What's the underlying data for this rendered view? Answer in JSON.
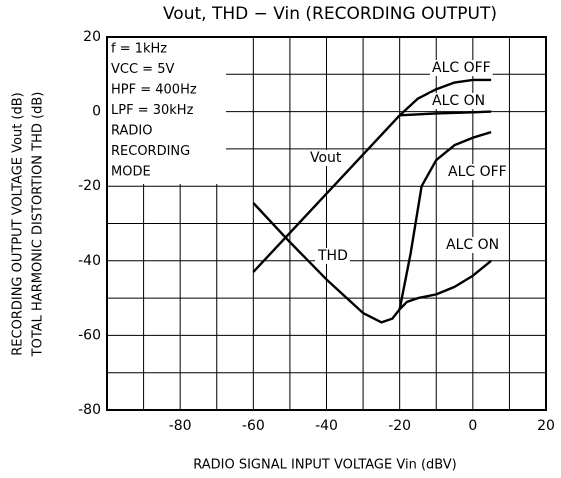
{
  "chart_data": {
    "type": "line",
    "title": "Vout, THD − Vin (RECORDING OUTPUT)",
    "x_label": "RADIO SIGNAL INPUT VOLTAGE   Vin   (dBV)",
    "y_label": [
      "RECORDING OUTPUT VOLTAGE   Vout   (dB)",
      "TOTAL HARMONIC DISTORTION   THD   (dB)"
    ],
    "conditions": [
      "f = 1kHz",
      "VCC = 5V",
      "HPF = 400Hz",
      "LPF = 30kHz",
      "RADIO",
      "RECORDING",
      "MODE"
    ],
    "annotations": [
      "ALC OFF",
      "ALC ON",
      "Vout",
      "ALC OFF",
      "THD",
      "ALC ON"
    ],
    "xlim": [
      -100,
      20
    ],
    "ylim": [
      -80,
      20
    ],
    "xticks": [
      -80,
      -60,
      -40,
      -20,
      0,
      20
    ],
    "yticks": [
      20,
      0,
      -20,
      -40,
      -60,
      -80
    ],
    "xgrid": [
      -90,
      -80,
      -70,
      -60,
      -50,
      -40,
      -30,
      -20,
      -10,
      0,
      10
    ],
    "ygrid": [
      10,
      0,
      -10,
      -20,
      -30,
      -40,
      -50,
      -60,
      -70
    ],
    "grid": true,
    "series": [
      {
        "color": "#000000",
        "x": [
          -60,
          -20,
          -15,
          -10,
          -5,
          0,
          5
        ],
        "values": [
          -43,
          -1,
          3.5,
          6,
          7.8,
          8.5,
          8.5
        ]
      },
      {
        "color": "#000000",
        "x": [
          -20,
          -10,
          0,
          5
        ],
        "values": [
          -1,
          -0.5,
          -0.2,
          0
        ]
      },
      {
        "color": "#000000",
        "x": [
          -60,
          -50,
          -40,
          -30,
          -25,
          -22,
          -20,
          -17,
          -14,
          -10,
          -5,
          0,
          5
        ],
        "values": [
          -24.5,
          -35,
          -45,
          -54,
          -56.5,
          -55.5,
          -53,
          -38,
          -20,
          -13,
          -9,
          -7,
          -5.5
        ]
      },
      {
        "color": "#000000",
        "x": [
          -20,
          -18,
          -15,
          -10,
          -5,
          0,
          5
        ],
        "values": [
          -53,
          -51,
          -50,
          -49,
          -47,
          -44,
          -40
        ]
      }
    ]
  }
}
